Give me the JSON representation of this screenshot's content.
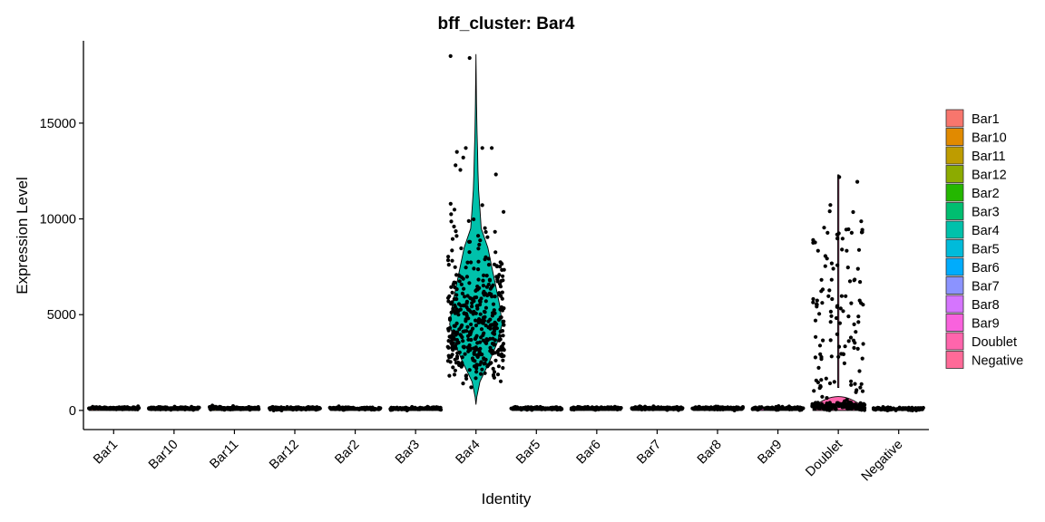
{
  "chart_data": {
    "type": "violin",
    "title": "bff_cluster: Bar4",
    "xlabel": "Identity",
    "ylabel": "Expression Level",
    "ylim": [
      -1000,
      19300
    ],
    "yticks": [
      0,
      5000,
      10000,
      15000
    ],
    "ytick_labels": [
      "0",
      "5000",
      "10000",
      "15000"
    ],
    "categories": [
      "Bar1",
      "Bar10",
      "Bar11",
      "Bar12",
      "Bar2",
      "Bar3",
      "Bar4",
      "Bar5",
      "Bar6",
      "Bar7",
      "Bar8",
      "Bar9",
      "Doublet",
      "Negative"
    ],
    "colors": [
      "#F8766D",
      "#E18A00",
      "#BE9C00",
      "#8CAB00",
      "#24B700",
      "#00BE70",
      "#00C1AB",
      "#00BBDA",
      "#00ACFC",
      "#8B93FF",
      "#D575FE",
      "#F962DD",
      "#FF65AC",
      "#FF6A98"
    ],
    "series": [
      {
        "name": "Bar1",
        "min": 0,
        "max": 230,
        "median": 120
      },
      {
        "name": "Bar10",
        "min": 0,
        "max": 230,
        "median": 110
      },
      {
        "name": "Bar11",
        "min": 0,
        "max": 260,
        "median": 120
      },
      {
        "name": "Bar12",
        "min": 0,
        "max": 240,
        "median": 110
      },
      {
        "name": "Bar2",
        "min": 0,
        "max": 200,
        "median": 100
      },
      {
        "name": "Bar3",
        "min": 0,
        "max": 200,
        "median": 100
      },
      {
        "name": "Bar4",
        "min": 300,
        "max": 18600,
        "median": 4300
      },
      {
        "name": "Bar5",
        "min": 0,
        "max": 230,
        "median": 110
      },
      {
        "name": "Bar6",
        "min": 0,
        "max": 210,
        "median": 110
      },
      {
        "name": "Bar7",
        "min": 0,
        "max": 240,
        "median": 120
      },
      {
        "name": "Bar8",
        "min": 0,
        "max": 220,
        "median": 110
      },
      {
        "name": "Bar9",
        "min": 0,
        "max": 220,
        "median": 110
      },
      {
        "name": "Doublet",
        "min": 0,
        "max": 12300,
        "median": 250
      },
      {
        "name": "Negative",
        "min": 0,
        "max": 170,
        "median": 80
      }
    ],
    "legend": {
      "position": "right",
      "entries": [
        "Bar1",
        "Bar10",
        "Bar11",
        "Bar12",
        "Bar2",
        "Bar3",
        "Bar4",
        "Bar5",
        "Bar6",
        "Bar7",
        "Bar8",
        "Bar9",
        "Doublet",
        "Negative"
      ]
    },
    "grid": false
  }
}
